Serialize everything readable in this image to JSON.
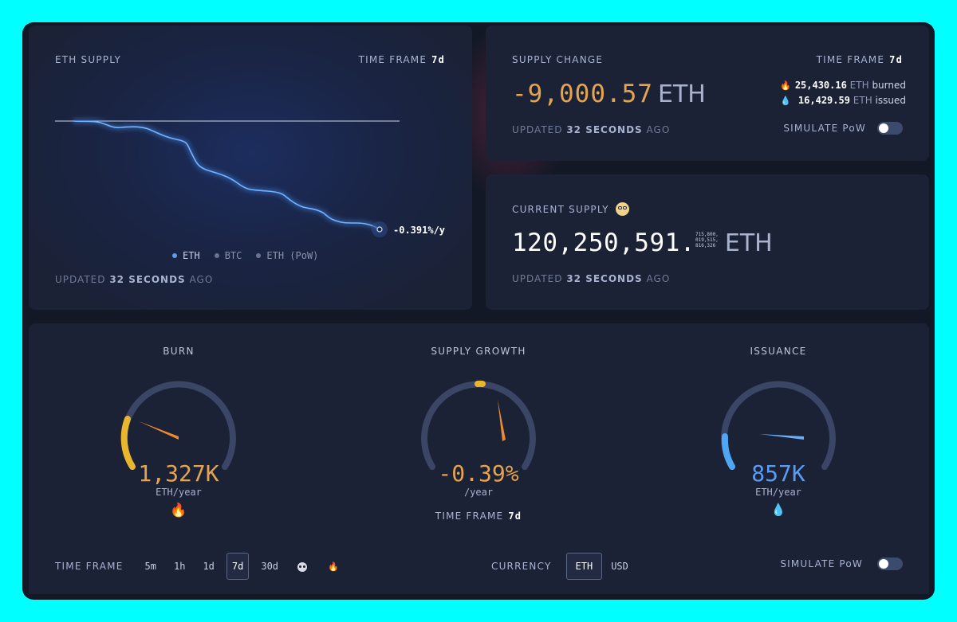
{
  "supply_card": {
    "title": "ETH SUPPLY",
    "time_frame_label": "TIME FRAME",
    "time_frame_value": "7d",
    "end_label": "-0.391%/y",
    "legend": [
      {
        "label": "ETH",
        "color": "#5b9cf0"
      },
      {
        "label": "BTC",
        "color": "#6b7590"
      },
      {
        "label": "ETH (PoW)",
        "color": "#6b7590"
      }
    ],
    "updated_prefix": "UPDATED",
    "updated_value": "32 SECONDS",
    "updated_suffix": "AGO"
  },
  "change_card": {
    "title": "SUPPLY CHANGE",
    "time_frame_label": "TIME FRAME",
    "time_frame_value": "7d",
    "amount": "-9,000.57",
    "unit": "ETH",
    "burned_value": "25,430.16",
    "burned_unit": "ETH",
    "burned_label": "burned",
    "issued_value": "16,429.59",
    "issued_unit": "ETH",
    "issued_label": "issued",
    "updated_prefix": "UPDATED",
    "updated_value": "32 SECONDS",
    "updated_suffix": "AGO",
    "simulate_label": "SIMULATE PoW"
  },
  "current_card": {
    "title": "CURRENT SUPPLY",
    "amount": "120,250,591.",
    "decimals": [
      "715,800,",
      "019,515,",
      "816,326"
    ],
    "unit": "ETH",
    "updated_prefix": "UPDATED",
    "updated_value": "32 SECONDS",
    "updated_suffix": "AGO"
  },
  "gauges": {
    "burn": {
      "title": "BURN",
      "value": "1,327K",
      "unit": "ETH/year",
      "color": "#e6a44e",
      "level": 0.35
    },
    "growth": {
      "title": "SUPPLY GROWTH",
      "value": "-0.39%",
      "unit": "/year",
      "color": "#e6a44e",
      "time_frame_label": "TIME FRAME",
      "time_frame_value": "7d"
    },
    "issuance": {
      "title": "ISSUANCE",
      "value": "857K",
      "unit": "ETH/year",
      "color": "#5b9cf0",
      "level": 0.2
    }
  },
  "bottom_bar": {
    "time_frame_label": "TIME FRAME",
    "time_frames": [
      "5m",
      "1h",
      "1d",
      "7d",
      "30d"
    ],
    "selected_time_frame": "7d",
    "currency_label": "CURRENCY",
    "currencies": [
      "ETH",
      "USD"
    ],
    "selected_currency": "ETH",
    "simulate_label": "SIMULATE PoW"
  },
  "icons": {
    "burn": "fire-icon",
    "issued": "droplet-icon",
    "current_supply": "nerd-emoji-icon",
    "since_merge": "panda-icon",
    "since_burn": "flame-small-icon"
  },
  "colors": {
    "accent_orange": "#e6a44e",
    "accent_blue": "#5b9cf0",
    "card_bg": "#1b2236"
  }
}
